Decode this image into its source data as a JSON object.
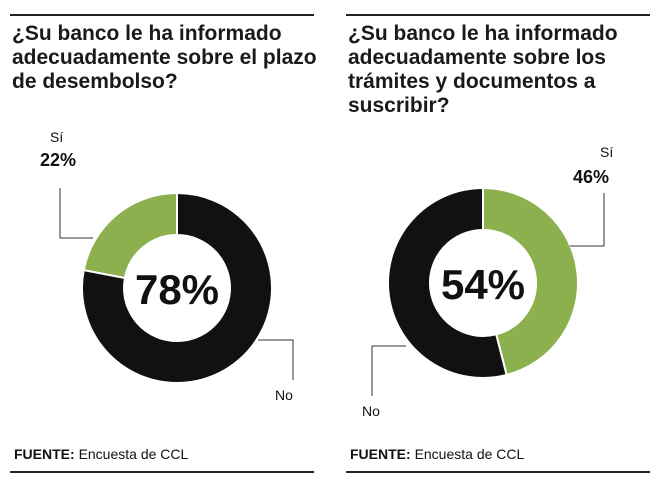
{
  "chart_data": [
    {
      "type": "pie",
      "title": "¿Su banco le ha informado adecuadamente sobre el plazo de desembolso?",
      "categories": [
        "Sí",
        "No"
      ],
      "values": [
        22,
        78
      ],
      "labels": [
        "22%",
        "78%"
      ],
      "center_label": "78%",
      "colors": [
        "#8db04e",
        "#111111"
      ],
      "source_label": "FUENTE:",
      "source_text": "Encuesta de CCL"
    },
    {
      "type": "pie",
      "title": "¿Su banco le ha informado adecuadamente sobre los trámites y documentos a suscribir?",
      "categories": [
        "Sí",
        "No"
      ],
      "values": [
        46,
        54
      ],
      "labels": [
        "46%",
        "54%"
      ],
      "center_label": "54%",
      "colors": [
        "#8db04e",
        "#111111"
      ],
      "source_label": "FUENTE:",
      "source_text": "Encuesta de CCL"
    }
  ]
}
